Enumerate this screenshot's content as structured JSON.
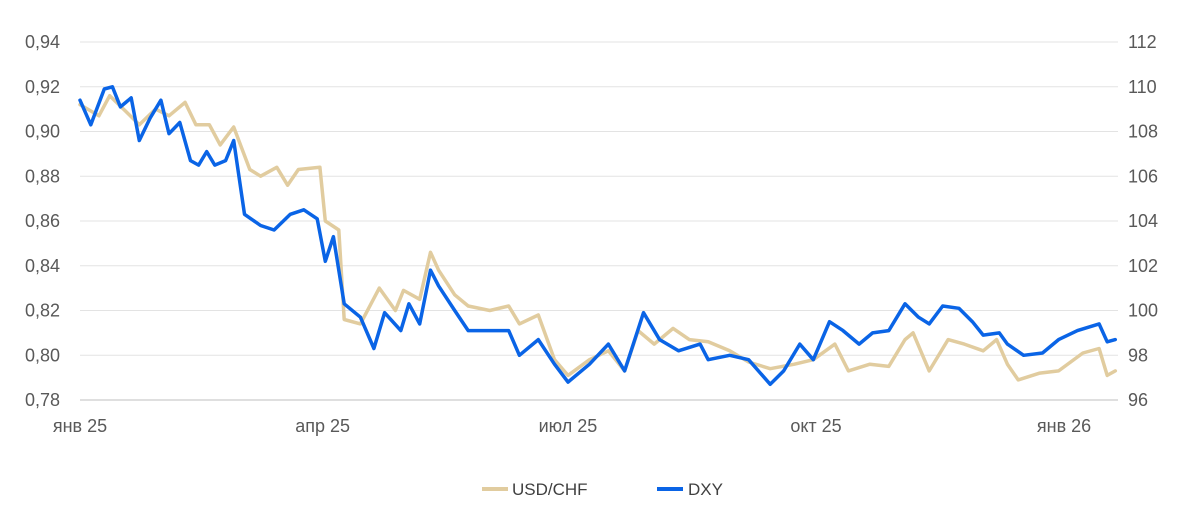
{
  "chart_data": {
    "type": "line",
    "title": "",
    "xlabel": "",
    "ylabel_left": "",
    "ylabel_right": "",
    "grid": true,
    "legend_position": "bottom",
    "x_ticks": [
      {
        "date": "2025-01-01",
        "label": "янв 25"
      },
      {
        "date": "2025-04-01",
        "label": "апр 25"
      },
      {
        "date": "2025-07-01",
        "label": "июл 25"
      },
      {
        "date": "2025-10-01",
        "label": "окт 25"
      },
      {
        "date": "2026-01-01",
        "label": "янв 26"
      }
    ],
    "xlim": [
      "2025-01-01",
      "2026-01-20"
    ],
    "y_left": {
      "lim": [
        0.78,
        0.94
      ],
      "ticks": [
        "0,78",
        "0,80",
        "0,82",
        "0,84",
        "0,86",
        "0,88",
        "0,90",
        "0,92",
        "0,94"
      ]
    },
    "y_right": {
      "lim": [
        96,
        112
      ],
      "ticks": [
        "96",
        "98",
        "100",
        "102",
        "104",
        "106",
        "108",
        "110",
        "112"
      ]
    },
    "series": [
      {
        "name": "USD/CHF",
        "axis": "left",
        "color": "#e1cc9f",
        "points": [
          [
            "2025-01-01",
            0.912
          ],
          [
            "2025-01-08",
            0.907
          ],
          [
            "2025-01-12",
            0.916
          ],
          [
            "2025-01-18",
            0.909
          ],
          [
            "2025-01-23",
            0.903
          ],
          [
            "2025-01-29",
            0.91
          ],
          [
            "2025-02-03",
            0.907
          ],
          [
            "2025-02-09",
            0.913
          ],
          [
            "2025-02-13",
            0.903
          ],
          [
            "2025-02-18",
            0.903
          ],
          [
            "2025-02-22",
            0.894
          ],
          [
            "2025-02-27",
            0.902
          ],
          [
            "2025-03-05",
            0.883
          ],
          [
            "2025-03-09",
            0.88
          ],
          [
            "2025-03-15",
            0.884
          ],
          [
            "2025-03-19",
            0.876
          ],
          [
            "2025-03-23",
            0.883
          ],
          [
            "2025-03-31",
            0.884
          ],
          [
            "2025-04-02",
            0.86
          ],
          [
            "2025-04-07",
            0.856
          ],
          [
            "2025-04-09",
            0.816
          ],
          [
            "2025-04-15",
            0.814
          ],
          [
            "2025-04-22",
            0.83
          ],
          [
            "2025-04-28",
            0.82
          ],
          [
            "2025-05-01",
            0.829
          ],
          [
            "2025-05-07",
            0.825
          ],
          [
            "2025-05-11",
            0.846
          ],
          [
            "2025-05-14",
            0.838
          ],
          [
            "2025-05-20",
            0.827
          ],
          [
            "2025-05-25",
            0.822
          ],
          [
            "2025-06-02",
            0.82
          ],
          [
            "2025-06-09",
            0.822
          ],
          [
            "2025-06-13",
            0.814
          ],
          [
            "2025-06-20",
            0.818
          ],
          [
            "2025-06-26",
            0.798
          ],
          [
            "2025-07-01",
            0.791
          ],
          [
            "2025-07-09",
            0.798
          ],
          [
            "2025-07-16",
            0.802
          ],
          [
            "2025-07-22",
            0.793
          ],
          [
            "2025-07-27",
            0.811
          ],
          [
            "2025-08-02",
            0.805
          ],
          [
            "2025-08-09",
            0.812
          ],
          [
            "2025-08-15",
            0.807
          ],
          [
            "2025-08-22",
            0.806
          ],
          [
            "2025-08-30",
            0.802
          ],
          [
            "2025-09-06",
            0.797
          ],
          [
            "2025-09-14",
            0.794
          ],
          [
            "2025-09-23",
            0.796
          ],
          [
            "2025-09-30",
            0.798
          ],
          [
            "2025-10-08",
            0.805
          ],
          [
            "2025-10-13",
            0.793
          ],
          [
            "2025-10-21",
            0.796
          ],
          [
            "2025-10-28",
            0.795
          ],
          [
            "2025-11-03",
            0.807
          ],
          [
            "2025-11-06",
            0.81
          ],
          [
            "2025-11-12",
            0.793
          ],
          [
            "2025-11-19",
            0.807
          ],
          [
            "2025-11-25",
            0.805
          ],
          [
            "2025-12-02",
            0.802
          ],
          [
            "2025-12-07",
            0.807
          ],
          [
            "2025-12-11",
            0.796
          ],
          [
            "2025-12-15",
            0.789
          ],
          [
            "2025-12-23",
            0.792
          ],
          [
            "2025-12-30",
            0.793
          ],
          [
            "2026-01-08",
            0.801
          ],
          [
            "2026-01-14",
            0.803
          ],
          [
            "2026-01-17",
            0.791
          ],
          [
            "2026-01-20",
            0.793
          ]
        ]
      },
      {
        "name": "DXY",
        "axis": "right",
        "color": "#0a64e6",
        "points": [
          [
            "2025-01-01",
            109.4
          ],
          [
            "2025-01-05",
            108.3
          ],
          [
            "2025-01-10",
            109.9
          ],
          [
            "2025-01-13",
            110.0
          ],
          [
            "2025-01-16",
            109.1
          ],
          [
            "2025-01-20",
            109.5
          ],
          [
            "2025-01-23",
            107.6
          ],
          [
            "2025-01-27",
            108.6
          ],
          [
            "2025-01-31",
            109.4
          ],
          [
            "2025-02-03",
            107.9
          ],
          [
            "2025-02-07",
            108.4
          ],
          [
            "2025-02-11",
            106.7
          ],
          [
            "2025-02-14",
            106.5
          ],
          [
            "2025-02-17",
            107.1
          ],
          [
            "2025-02-20",
            106.5
          ],
          [
            "2025-02-24",
            106.7
          ],
          [
            "2025-02-27",
            107.6
          ],
          [
            "2025-03-03",
            104.3
          ],
          [
            "2025-03-09",
            103.8
          ],
          [
            "2025-03-14",
            103.6
          ],
          [
            "2025-03-20",
            104.3
          ],
          [
            "2025-03-25",
            104.5
          ],
          [
            "2025-03-30",
            104.1
          ],
          [
            "2025-04-02",
            102.2
          ],
          [
            "2025-04-05",
            103.3
          ],
          [
            "2025-04-09",
            100.3
          ],
          [
            "2025-04-15",
            99.7
          ],
          [
            "2025-04-20",
            98.3
          ],
          [
            "2025-04-24",
            99.9
          ],
          [
            "2025-04-30",
            99.1
          ],
          [
            "2025-05-03",
            100.3
          ],
          [
            "2025-05-07",
            99.4
          ],
          [
            "2025-05-11",
            101.8
          ],
          [
            "2025-05-14",
            101.1
          ],
          [
            "2025-05-20",
            100.0
          ],
          [
            "2025-05-25",
            99.1
          ],
          [
            "2025-06-02",
            99.1
          ],
          [
            "2025-06-09",
            99.1
          ],
          [
            "2025-06-13",
            98.0
          ],
          [
            "2025-06-20",
            98.7
          ],
          [
            "2025-06-26",
            97.6
          ],
          [
            "2025-07-01",
            96.8
          ],
          [
            "2025-07-09",
            97.6
          ],
          [
            "2025-07-16",
            98.5
          ],
          [
            "2025-07-22",
            97.3
          ],
          [
            "2025-07-29",
            99.9
          ],
          [
            "2025-08-04",
            98.7
          ],
          [
            "2025-08-11",
            98.2
          ],
          [
            "2025-08-19",
            98.5
          ],
          [
            "2025-08-22",
            97.8
          ],
          [
            "2025-08-30",
            98.0
          ],
          [
            "2025-09-06",
            97.8
          ],
          [
            "2025-09-14",
            96.7
          ],
          [
            "2025-09-19",
            97.3
          ],
          [
            "2025-09-25",
            98.5
          ],
          [
            "2025-09-30",
            97.8
          ],
          [
            "2025-10-06",
            99.5
          ],
          [
            "2025-10-11",
            99.1
          ],
          [
            "2025-10-17",
            98.5
          ],
          [
            "2025-10-22",
            99.0
          ],
          [
            "2025-10-28",
            99.1
          ],
          [
            "2025-11-03",
            100.3
          ],
          [
            "2025-11-08",
            99.7
          ],
          [
            "2025-11-12",
            99.4
          ],
          [
            "2025-11-17",
            100.2
          ],
          [
            "2025-11-23",
            100.1
          ],
          [
            "2025-11-28",
            99.5
          ],
          [
            "2025-12-02",
            98.9
          ],
          [
            "2025-12-08",
            99.0
          ],
          [
            "2025-12-11",
            98.5
          ],
          [
            "2025-12-17",
            98.0
          ],
          [
            "2025-12-24",
            98.1
          ],
          [
            "2025-12-30",
            98.7
          ],
          [
            "2026-01-06",
            99.1
          ],
          [
            "2026-01-14",
            99.4
          ],
          [
            "2026-01-17",
            98.6
          ],
          [
            "2026-01-20",
            98.7
          ]
        ]
      }
    ]
  }
}
